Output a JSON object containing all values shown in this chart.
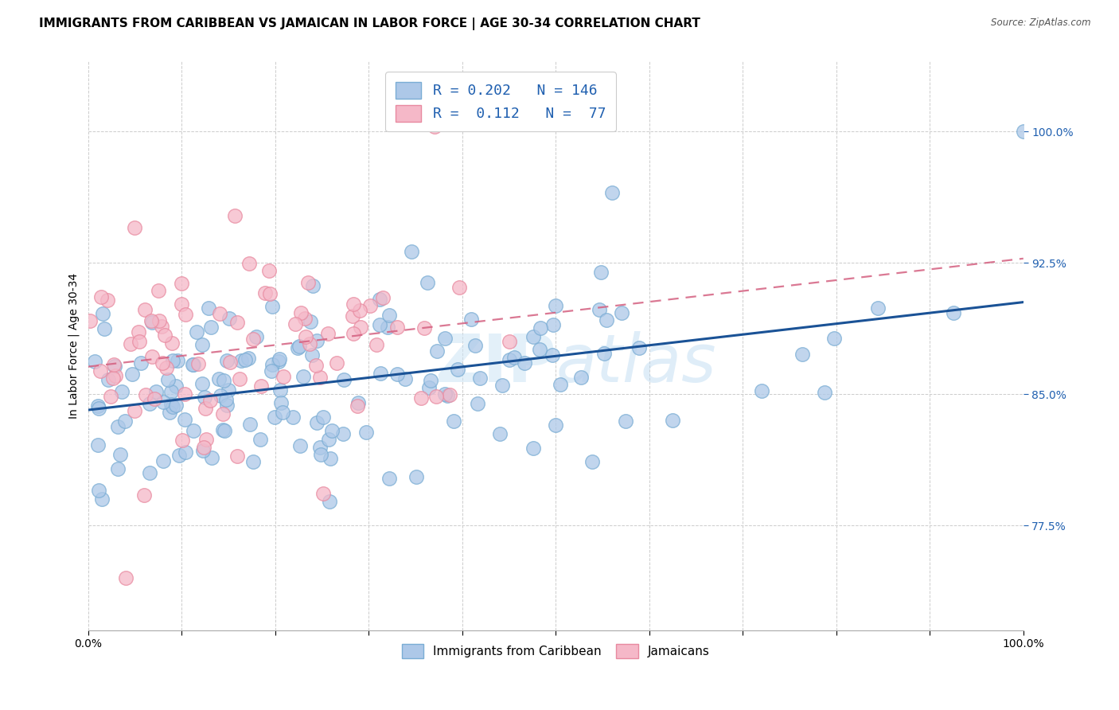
{
  "title": "IMMIGRANTS FROM CARIBBEAN VS JAMAICAN IN LABOR FORCE | AGE 30-34 CORRELATION CHART",
  "source": "Source: ZipAtlas.com",
  "ylabel": "In Labor Force | Age 30-34",
  "ytick_values": [
    0.775,
    0.85,
    0.925,
    1.0
  ],
  "xlim": [
    0.0,
    1.0
  ],
  "ylim": [
    0.715,
    1.04
  ],
  "legend_labels": [
    "Immigrants from Caribbean",
    "Jamaicans"
  ],
  "R_caribbean": 0.202,
  "N_caribbean": 146,
  "R_jamaican": 0.112,
  "N_jamaican": 77,
  "blue_face_color": "#adc8e8",
  "blue_edge_color": "#7aadd4",
  "pink_face_color": "#f5b8c8",
  "pink_edge_color": "#e88aa0",
  "blue_line_color": "#1a5296",
  "pink_line_color": "#d46080",
  "title_fontsize": 11,
  "label_fontsize": 10,
  "tick_fontsize": 10,
  "ytick_color": "#2060b0"
}
